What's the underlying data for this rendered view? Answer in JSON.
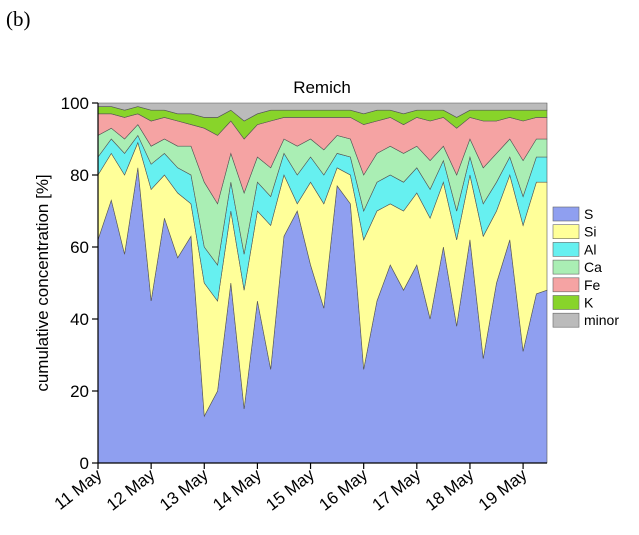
{
  "panel_label": "(b)",
  "chart_data": {
    "type": "stacked_area",
    "title": "Remich",
    "y_label": "cumulative concentration [%]",
    "x": [
      11,
      11.25,
      11.5,
      11.75,
      12,
      12.25,
      12.5,
      12.75,
      13,
      13.25,
      13.5,
      13.75,
      14,
      14.25,
      14.5,
      14.75,
      15,
      15.25,
      15.5,
      15.75,
      16,
      16.25,
      16.5,
      16.75,
      17,
      17.25,
      17.5,
      17.75,
      18,
      18.25,
      18.5,
      18.75,
      19,
      19.25,
      19.45
    ],
    "xlim": [
      11,
      19.45
    ],
    "xticks": [
      {
        "value": 11,
        "label": "11 May"
      },
      {
        "value": 12,
        "label": "12 May"
      },
      {
        "value": 13,
        "label": "13 May"
      },
      {
        "value": 14,
        "label": "14 May"
      },
      {
        "value": 15,
        "label": "15 May"
      },
      {
        "value": 16,
        "label": "16 May"
      },
      {
        "value": 17,
        "label": "17 May"
      },
      {
        "value": 18,
        "label": "18 May"
      },
      {
        "value": 19,
        "label": "19 May"
      }
    ],
    "ylim": [
      0,
      100
    ],
    "yticks": [
      0,
      20,
      40,
      60,
      80,
      100
    ],
    "legend": "right",
    "series": [
      {
        "name": "S",
        "color": "#8f9ff0",
        "values": [
          62,
          73,
          58,
          82,
          45,
          68,
          57,
          63,
          13,
          20,
          50,
          15,
          45,
          26,
          63,
          70,
          55,
          43,
          77,
          72,
          26,
          45,
          55,
          48,
          55,
          40,
          60,
          38,
          62,
          29,
          50,
          62,
          31,
          47,
          48
        ]
      },
      {
        "name": "Si",
        "color": "#ffff99",
        "values": [
          18,
          13,
          22,
          7,
          31,
          12,
          18,
          9,
          37,
          25,
          20,
          33,
          25,
          40,
          17,
          2,
          23,
          29,
          5,
          8,
          36,
          25,
          17,
          22,
          20,
          28,
          18,
          24,
          18,
          34,
          20,
          18,
          35,
          31,
          30
        ]
      },
      {
        "name": "Al",
        "color": "#66f0f0",
        "values": [
          5,
          4,
          6,
          2,
          7,
          6,
          7,
          8,
          10,
          10,
          8,
          10,
          8,
          8,
          6,
          8,
          7,
          8,
          4,
          5,
          8,
          8,
          8,
          8,
          7,
          8,
          6,
          8,
          5,
          9,
          8,
          5,
          8,
          7,
          7
        ]
      },
      {
        "name": "Ca",
        "color": "#aaeeb4",
        "values": [
          6,
          3,
          4,
          3,
          5,
          4,
          6,
          8,
          18,
          17,
          8,
          17,
          7,
          8,
          4,
          8,
          5,
          7,
          5,
          5,
          10,
          8,
          8,
          8,
          6,
          8,
          4,
          10,
          5,
          10,
          8,
          5,
          10,
          5,
          5
        ]
      },
      {
        "name": "Fe",
        "color": "#f5a3a3",
        "values": [
          6,
          4,
          6,
          3,
          7,
          6,
          7,
          6,
          15,
          19,
          9,
          15,
          9,
          13,
          6,
          8,
          6,
          9,
          5,
          6,
          14,
          9,
          8,
          8,
          8,
          11,
          8,
          13,
          6,
          13,
          9,
          6,
          11,
          6,
          6
        ]
      },
      {
        "name": "K",
        "color": "#88d42a",
        "values": [
          2,
          2,
          2,
          2,
          3,
          2,
          2,
          3,
          3,
          5,
          3,
          5,
          3,
          3,
          2,
          2,
          2,
          2,
          2,
          2,
          3,
          3,
          2,
          3,
          2,
          3,
          2,
          3,
          2,
          3,
          3,
          2,
          3,
          2,
          2
        ]
      },
      {
        "name": "minor",
        "color": "#bbbbbb",
        "values": [
          1,
          1,
          2,
          1,
          2,
          2,
          3,
          3,
          4,
          4,
          2,
          5,
          3,
          2,
          2,
          2,
          2,
          2,
          2,
          2,
          3,
          2,
          2,
          3,
          2,
          2,
          2,
          4,
          2,
          2,
          2,
          2,
          2,
          2,
          2
        ]
      }
    ]
  }
}
